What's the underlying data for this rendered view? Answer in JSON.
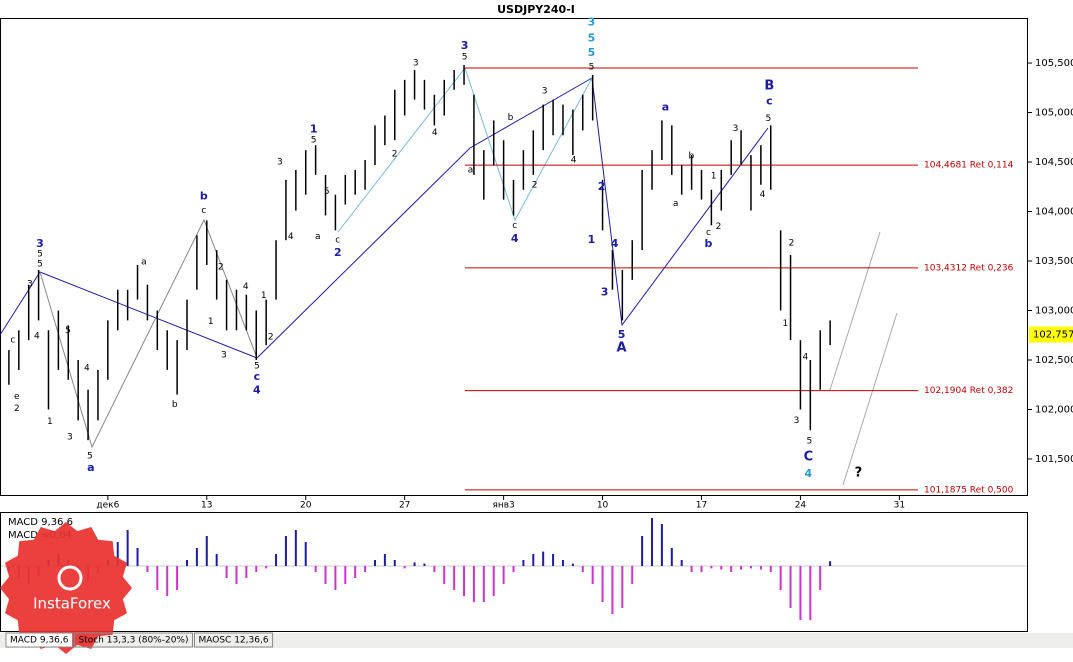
{
  "chart_data": [
    {
      "type": "ohlc",
      "title": "USDJPY240-I",
      "bar_color": "#000000",
      "level_color": "#c00000",
      "x": [
        -5,
        -4.5,
        -4,
        -3.5,
        -3,
        -2.5,
        -2,
        -1.5,
        -1,
        -0.5,
        0,
        0.5,
        1,
        1.5,
        2,
        2.5,
        3,
        3.5,
        4,
        4.5,
        5,
        5.5,
        6,
        6.5,
        7,
        7.5,
        8,
        8.5,
        9,
        9.5,
        10,
        10.5,
        11,
        11.5,
        12,
        12.5,
        13,
        13.5,
        14,
        14.5,
        15,
        15.5,
        16,
        16.5,
        17,
        17.5,
        18,
        18.5,
        19,
        19.5,
        20,
        20.5,
        21,
        21.5,
        22,
        22.5,
        23,
        23.5,
        24,
        24.5,
        25,
        25.5,
        26,
        26.5,
        27,
        27.5,
        28,
        28.5,
        29,
        29.5,
        30,
        30.5,
        31,
        31.5,
        32,
        32.5,
        33,
        33.5,
        34,
        34.5,
        35,
        35.5,
        36,
        36.5
      ],
      "high": [
        102.6,
        102.8,
        103.26,
        103.41,
        102.8,
        103.0,
        102.85,
        102.5,
        102.2,
        102.4,
        102.9,
        103.21,
        103.21,
        103.46,
        103.26,
        103.0,
        102.8,
        102.7,
        103.11,
        103.76,
        103.91,
        103.61,
        103.31,
        103.21,
        103.16,
        103.0,
        103.11,
        103.71,
        104.32,
        104.42,
        104.62,
        104.67,
        104.37,
        104.17,
        104.37,
        104.42,
        104.52,
        104.87,
        104.97,
        105.23,
        105.33,
        105.43,
        105.33,
        105.18,
        105.33,
        105.43,
        105.48,
        105.18,
        104.62,
        104.92,
        104.72,
        104.32,
        104.62,
        104.82,
        105.08,
        105.13,
        105.08,
        105.03,
        105.18,
        105.38,
        104.32,
        103.61,
        103.41,
        103.71,
        104.42,
        104.62,
        104.92,
        104.87,
        104.47,
        104.57,
        104.42,
        104.22,
        104.42,
        104.72,
        104.82,
        104.57,
        104.67,
        104.87,
        103.81,
        103.56,
        102.7,
        102.5,
        102.8,
        102.9
      ],
      "low": [
        102.25,
        102.4,
        102.7,
        102.9,
        102.0,
        102.4,
        102.3,
        101.89,
        101.69,
        101.89,
        102.3,
        102.8,
        102.9,
        103.11,
        102.9,
        102.6,
        102.4,
        102.15,
        102.6,
        103.21,
        103.46,
        103.11,
        102.8,
        102.8,
        102.8,
        102.5,
        102.65,
        103.11,
        103.71,
        104.01,
        104.17,
        104.37,
        103.96,
        103.81,
        104.07,
        104.17,
        104.22,
        104.47,
        104.67,
        104.72,
        104.97,
        105.13,
        105.03,
        104.87,
        104.97,
        105.23,
        105.28,
        104.37,
        104.12,
        104.47,
        104.12,
        103.96,
        104.22,
        104.37,
        104.62,
        104.77,
        104.77,
        104.57,
        104.82,
        104.92,
        103.81,
        103.21,
        102.9,
        103.31,
        103.61,
        104.22,
        104.52,
        104.37,
        104.17,
        104.22,
        104.12,
        103.86,
        104.01,
        104.37,
        104.47,
        104.01,
        104.27,
        104.22,
        103.0,
        102.7,
        102.0,
        101.79,
        102.2,
        102.65
      ],
      "xlim": [
        -5.45,
        46.5
      ],
      "ylim": [
        101.136,
        105.955
      ],
      "xticks": [
        {
          "value": 0,
          "label": "дек6"
        },
        {
          "value": 5,
          "label": "13"
        },
        {
          "value": 10,
          "label": "20"
        },
        {
          "value": 15,
          "label": "27"
        },
        {
          "value": 20,
          "label": "янв3"
        },
        {
          "value": 25,
          "label": "10"
        },
        {
          "value": 30,
          "label": "17"
        },
        {
          "value": 35,
          "label": "24"
        },
        {
          "value": 40,
          "label": "31"
        }
      ],
      "yticks": [
        {
          "value": 101.5,
          "label": "101,500"
        },
        {
          "value": 102,
          "label": "102,000"
        },
        {
          "value": 102.5,
          "label": "102,500"
        },
        {
          "value": 103,
          "label": "103,000"
        },
        {
          "value": 103.5,
          "label": "103,500"
        },
        {
          "value": 104,
          "label": "104,000"
        },
        {
          "value": 104.5,
          "label": "104,500"
        },
        {
          "value": 105,
          "label": "105,000"
        },
        {
          "value": 105.5,
          "label": "105,500"
        }
      ],
      "levels": [
        {
          "value": 105.45
        },
        {
          "value": 104.4681,
          "label": "104,4681 Ret 0,114"
        },
        {
          "value": 103.4312,
          "label": "103,4312 Ret 0,236"
        },
        {
          "value": 102.1904,
          "label": "102,1904 Ret 0,382"
        },
        {
          "value": 101.1875,
          "label": "101,1875 Ret 0,500"
        }
      ],
      "last": {
        "value": 102.757,
        "label": "102,757"
      },
      "annotations": [
        {
          "text": "3",
          "x": -3.43,
          "y": 103.67,
          "color": "#1c1ca8"
        },
        {
          "text": "5",
          "x": -3.43,
          "y": 103.57,
          "color": "#000000"
        },
        {
          "text": "5",
          "x": -3.43,
          "y": 103.47,
          "color": "#000000"
        },
        {
          "text": "3",
          "x": -3.94,
          "y": 103.27,
          "color": "#000000"
        },
        {
          "text": "4",
          "x": -3.59,
          "y": 102.74,
          "color": "#000000"
        },
        {
          "text": "5",
          "x": -2.02,
          "y": 102.8,
          "color": "#000000"
        },
        {
          "text": "c",
          "x": -4.8,
          "y": 102.7,
          "color": "#000000"
        },
        {
          "text": "e",
          "x": -4.6,
          "y": 102.13,
          "color": "#000000"
        },
        {
          "text": "2",
          "x": -4.6,
          "y": 102.01,
          "color": "#000000"
        },
        {
          "text": "1",
          "x": -2.93,
          "y": 101.88,
          "color": "#000000"
        },
        {
          "text": "3",
          "x": -1.92,
          "y": 101.72,
          "color": "#000000"
        },
        {
          "text": "4",
          "x": -1.06,
          "y": 102.42,
          "color": "#000000"
        },
        {
          "text": "5",
          "x": -0.91,
          "y": 101.53,
          "color": "#000000"
        },
        {
          "text": "a",
          "x": -0.86,
          "y": 101.41,
          "color": "#1c1ca8"
        },
        {
          "text": "a",
          "x": 1.82,
          "y": 103.49,
          "color": "#000000"
        },
        {
          "text": "b",
          "x": 3.38,
          "y": 102.05,
          "color": "#000000"
        },
        {
          "text": "b",
          "x": 4.85,
          "y": 104.15,
          "color": "#1c1ca8"
        },
        {
          "text": "c",
          "x": 4.85,
          "y": 104.01,
          "color": "#000000"
        },
        {
          "text": "1",
          "x": 5.2,
          "y": 102.89,
          "color": "#000000"
        },
        {
          "text": "2",
          "x": 5.71,
          "y": 103.44,
          "color": "#000000"
        },
        {
          "text": "3",
          "x": 5.86,
          "y": 102.55,
          "color": "#000000"
        },
        {
          "text": "4",
          "x": 6.97,
          "y": 103.24,
          "color": "#000000"
        },
        {
          "text": "1",
          "x": 7.88,
          "y": 103.15,
          "color": "#000000"
        },
        {
          "text": "2",
          "x": 8.23,
          "y": 102.73,
          "color": "#000000"
        },
        {
          "text": "5",
          "x": 7.53,
          "y": 102.44,
          "color": "#000000"
        },
        {
          "text": "c",
          "x": 7.53,
          "y": 102.33,
          "color": "#1c1ca8"
        },
        {
          "text": "4",
          "x": 7.53,
          "y": 102.19,
          "color": "#1c1ca8"
        },
        {
          "text": "3",
          "x": 8.69,
          "y": 104.5,
          "color": "#000000"
        },
        {
          "text": "4",
          "x": 9.24,
          "y": 103.75,
          "color": "#000000"
        },
        {
          "text": "a",
          "x": 10.61,
          "y": 103.75,
          "color": "#000000"
        },
        {
          "text": "c",
          "x": 11.62,
          "y": 103.71,
          "color": "#000000"
        },
        {
          "text": "2",
          "x": 11.62,
          "y": 103.58,
          "color": "#1c1ca8"
        },
        {
          "text": "5",
          "x": 11.06,
          "y": 104.2,
          "color": "#000000"
        },
        {
          "text": "1",
          "x": 10.4,
          "y": 104.83,
          "color": "#1c1ca8"
        },
        {
          "text": "5",
          "x": 10.4,
          "y": 104.72,
          "color": "#000000"
        },
        {
          "text": "2",
          "x": 14.49,
          "y": 104.58,
          "color": "#000000"
        },
        {
          "text": "3",
          "x": 15.56,
          "y": 105.5,
          "color": "#000000"
        },
        {
          "text": "4",
          "x": 16.52,
          "y": 104.8,
          "color": "#000000"
        },
        {
          "text": "3",
          "x": 18.03,
          "y": 105.67,
          "color": "#1c1ca8"
        },
        {
          "text": "5",
          "x": 18.03,
          "y": 105.56,
          "color": "#000000"
        },
        {
          "text": "a",
          "x": 18.33,
          "y": 104.42,
          "color": "#000000"
        },
        {
          "text": "b",
          "x": 20.35,
          "y": 104.95,
          "color": "#000000"
        },
        {
          "text": "c",
          "x": 20.56,
          "y": 103.86,
          "color": "#000000"
        },
        {
          "text": "4",
          "x": 20.56,
          "y": 103.72,
          "color": "#1c1ca8"
        },
        {
          "text": "2",
          "x": 21.57,
          "y": 104.27,
          "color": "#000000"
        },
        {
          "text": "3",
          "x": 22.07,
          "y": 105.22,
          "color": "#000000"
        },
        {
          "text": "4",
          "x": 23.54,
          "y": 104.52,
          "color": "#000000"
        },
        {
          "text": "3",
          "x": 24.44,
          "y": 105.91,
          "color": "#2a9ad0"
        },
        {
          "text": "5",
          "x": 24.44,
          "y": 105.75,
          "color": "#2a9ad0"
        },
        {
          "text": "5",
          "x": 24.44,
          "y": 105.6,
          "color": "#2a9ad0"
        },
        {
          "text": "5",
          "x": 24.44,
          "y": 105.46,
          "color": "#000000"
        },
        {
          "text": "1",
          "x": 24.44,
          "y": 103.71,
          "color": "#1c1ca8"
        },
        {
          "text": "2",
          "x": 24.95,
          "y": 104.25,
          "color": "#1c1ca8"
        },
        {
          "text": "4",
          "x": 25.61,
          "y": 103.67,
          "color": "#1c1ca8"
        },
        {
          "text": "3",
          "x": 25.1,
          "y": 103.18,
          "color": "#1c1ca8"
        },
        {
          "text": "5",
          "x": 25.96,
          "y": 102.75,
          "color": "#1c1ca8"
        },
        {
          "text": "A",
          "x": 25.96,
          "y": 102.62,
          "color": "#1c1ca8"
        },
        {
          "text": "a",
          "x": 28.18,
          "y": 105.05,
          "color": "#1c1ca8"
        },
        {
          "text": "b",
          "x": 29.49,
          "y": 104.56,
          "color": "#000000"
        },
        {
          "text": "a",
          "x": 28.69,
          "y": 104.08,
          "color": "#000000"
        },
        {
          "text": "1",
          "x": 30.61,
          "y": 104.36,
          "color": "#000000"
        },
        {
          "text": "c",
          "x": 30.35,
          "y": 103.79,
          "color": "#000000"
        },
        {
          "text": "b",
          "x": 30.35,
          "y": 103.67,
          "color": "#1c1ca8"
        },
        {
          "text": "2",
          "x": 30.86,
          "y": 103.85,
          "color": "#000000"
        },
        {
          "text": "3",
          "x": 31.72,
          "y": 104.84,
          "color": "#000000"
        },
        {
          "text": "5",
          "x": 33.38,
          "y": 104.94,
          "color": "#000000"
        },
        {
          "text": "c",
          "x": 33.43,
          "y": 105.11,
          "color": "#1c1ca8"
        },
        {
          "text": "B",
          "x": 33.43,
          "y": 105.27,
          "color": "#1c1ca8"
        },
        {
          "text": "4",
          "x": 33.08,
          "y": 104.17,
          "color": "#000000"
        },
        {
          "text": "2",
          "x": 34.55,
          "y": 103.68,
          "color": "#000000"
        },
        {
          "text": "1",
          "x": 34.24,
          "y": 102.87,
          "color": "#000000"
        },
        {
          "text": "4",
          "x": 35.25,
          "y": 102.53,
          "color": "#000000"
        },
        {
          "text": "3",
          "x": 34.8,
          "y": 101.89,
          "color": "#000000"
        },
        {
          "text": "5",
          "x": 35.45,
          "y": 101.68,
          "color": "#000000"
        },
        {
          "text": "C",
          "x": 35.4,
          "y": 101.52,
          "color": "#1c1ca8"
        },
        {
          "text": "4",
          "x": 35.4,
          "y": 101.35,
          "color": "#2a9ad0"
        },
        {
          "text": "?",
          "x": 37.93,
          "y": 101.36,
          "color": "#000000"
        }
      ]
    },
    {
      "type": "histogram",
      "name_label": "MACD 9,36,6",
      "value_label": "MACD =0,04",
      "pos_color": "#1c1ca8",
      "neg_color": "#cc33cc",
      "ylim": [
        -0.55,
        0.45
      ],
      "values": [
        -0.05,
        -0.1,
        -0.15,
        -0.08,
        0.05,
        0.1,
        0.05,
        -0.05,
        -0.12,
        -0.06,
        0.05,
        0.2,
        0.3,
        0.15,
        -0.05,
        -0.2,
        -0.25,
        -0.2,
        0.05,
        0.15,
        0.25,
        0.1,
        -0.1,
        -0.15,
        -0.1,
        -0.05,
        -0.02,
        0.1,
        0.25,
        0.3,
        0.2,
        -0.05,
        -0.15,
        -0.2,
        -0.15,
        -0.1,
        -0.05,
        0.05,
        0.1,
        0.05,
        -0.02,
        0.03,
        0.02,
        -0.05,
        -0.15,
        -0.2,
        -0.25,
        -0.3,
        -0.3,
        -0.25,
        -0.15,
        -0.05,
        0.05,
        0.1,
        0.12,
        0.1,
        0.05,
        0.02,
        -0.05,
        -0.15,
        -0.3,
        -0.4,
        -0.35,
        -0.15,
        0.25,
        0.4,
        0.35,
        0.15,
        0.05,
        -0.05,
        -0.05,
        -0.02,
        -0.03,
        -0.05,
        -0.03,
        -0.02,
        -0.03,
        -0.05,
        -0.2,
        -0.35,
        -0.45,
        -0.45,
        -0.2,
        0.04
      ]
    }
  ],
  "tabs": [
    "MACD 9,36,6",
    "Stoch 13,3,3 (80%-20%)",
    "MAOSC 12,36,6"
  ],
  "logo": "InstaForex"
}
